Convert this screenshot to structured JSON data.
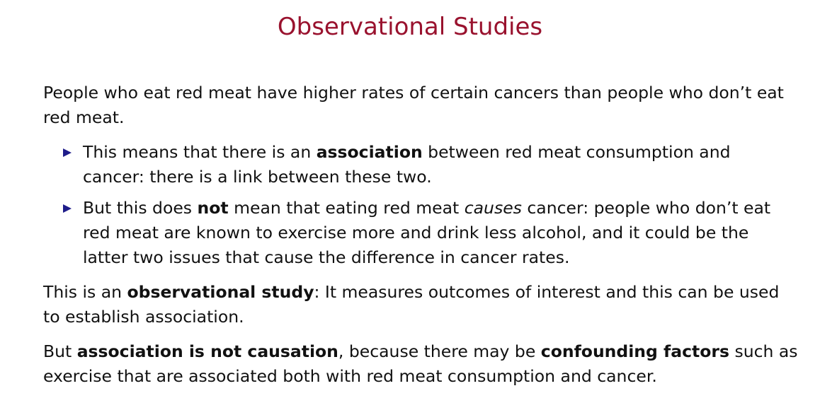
{
  "title": "Observational Studies",
  "paragraph1": "People who eat red meat have higher rates of certain cancers than people who don’t eat red meat.",
  "bullets": [
    {
      "pre": "This means that there is an ",
      "bold": "association",
      "post": " between red meat consumption and cancer: there is a link between these two."
    },
    {
      "pre": "But this does ",
      "bold": "not",
      "mid": " mean that eating red meat ",
      "italic": "causes",
      "post": " cancer: people who don’t eat red meat are known to exercise more and drink less alcohol, and it could be the latter two issues that cause the difference in cancer rates."
    }
  ],
  "paragraph3": {
    "pre": "This is an ",
    "bold": "observational study",
    "post": ": It measures outcomes of interest and this can be used to establish association."
  },
  "paragraph4": {
    "pre": "But ",
    "bold1": "association is not causation",
    "mid": ", because there may be ",
    "bold2": "confounding factors",
    "post": " such as exercise that are associated both with red meat consumption and cancer."
  },
  "colors": {
    "title": "#99122e",
    "bullet_marker": "#1f1d8a",
    "text": "#111111"
  },
  "icons": {
    "bullet_marker": "triangle-right-icon"
  }
}
